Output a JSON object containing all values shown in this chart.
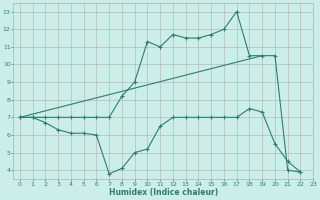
{
  "xlabel": "Humidex (Indice chaleur)",
  "bg_color": "#cceee8",
  "grid_color": "#b0b0b0",
  "line_color": "#2e7d6e",
  "xlim": [
    -0.5,
    23
  ],
  "ylim": [
    3.5,
    13.5
  ],
  "xticks": [
    0,
    1,
    2,
    3,
    4,
    5,
    6,
    7,
    8,
    9,
    10,
    11,
    12,
    13,
    14,
    15,
    16,
    17,
    18,
    19,
    20,
    21,
    22,
    23
  ],
  "yticks": [
    4,
    5,
    6,
    7,
    8,
    9,
    10,
    11,
    12,
    13
  ],
  "line1_x": [
    0,
    1,
    2,
    3,
    4,
    5,
    6,
    7,
    8,
    9,
    10,
    11,
    12,
    13,
    14,
    15,
    16,
    17,
    18,
    19,
    20,
    21,
    22
  ],
  "line1_y": [
    7.0,
    7.0,
    6.7,
    6.3,
    6.1,
    6.1,
    6.0,
    3.8,
    4.1,
    5.0,
    5.2,
    6.5,
    7.0,
    7.0,
    7.0,
    7.0,
    7.0,
    7.0,
    7.5,
    7.3,
    5.5,
    4.5,
    3.9
  ],
  "line2_x": [
    0,
    1,
    2,
    3,
    4,
    5,
    6,
    7,
    8,
    9,
    10,
    11,
    12,
    13,
    14,
    15,
    16,
    17,
    18,
    19,
    20,
    21,
    22
  ],
  "line2_y": [
    7.0,
    7.0,
    7.0,
    7.0,
    7.0,
    7.0,
    7.0,
    7.0,
    8.2,
    9.0,
    11.3,
    11.0,
    11.7,
    11.5,
    11.5,
    11.7,
    12.0,
    13.0,
    10.5,
    10.5,
    10.5,
    4.0,
    3.9
  ],
  "line3_x": [
    0,
    19
  ],
  "line3_y": [
    7.0,
    10.5
  ]
}
